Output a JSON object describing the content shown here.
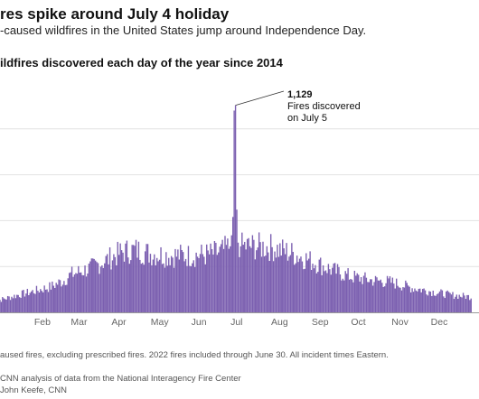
{
  "header": {
    "title": "res spike around July 4 holiday",
    "subtitle": "-caused wildfires in the United States jump around Independence Day."
  },
  "chart_data": {
    "type": "bar",
    "title": "ildfires discovered each day of the year since 2014",
    "color": "#7b5fb0",
    "x_tick_labels": [
      "Feb",
      "Mar",
      "Apr",
      "May",
      "Jun",
      "Jul",
      "Aug",
      "Sep",
      "Oct",
      "Nov",
      "Dec"
    ],
    "ylim": [
      0,
      1250
    ],
    "grid": true,
    "annotation": {
      "value": "1,129",
      "text_line1": "Fires discovered",
      "text_line2": "on July 5",
      "day_of_year": 186
    },
    "days": [
      {
        "day": 1,
        "value": 60
      },
      {
        "day": 10,
        "value": 75
      },
      {
        "day": 20,
        "value": 95
      },
      {
        "day": 32,
        "value": 115
      },
      {
        "day": 45,
        "value": 140
      },
      {
        "day": 55,
        "value": 175
      },
      {
        "day": 60,
        "value": 205
      },
      {
        "day": 75,
        "value": 240
      },
      {
        "day": 90,
        "value": 295
      },
      {
        "day": 100,
        "value": 330
      },
      {
        "day": 110,
        "value": 340
      },
      {
        "day": 121,
        "value": 320
      },
      {
        "day": 135,
        "value": 310
      },
      {
        "day": 152,
        "value": 310
      },
      {
        "day": 165,
        "value": 315
      },
      {
        "day": 175,
        "value": 330
      },
      {
        "day": 182,
        "value": 360
      },
      {
        "day": 183,
        "value": 420
      },
      {
        "day": 184,
        "value": 520
      },
      {
        "day": 185,
        "value": 1100
      },
      {
        "day": 186,
        "value": 1129
      },
      {
        "day": 187,
        "value": 560
      },
      {
        "day": 188,
        "value": 380
      },
      {
        "day": 190,
        "value": 360
      },
      {
        "day": 200,
        "value": 360
      },
      {
        "day": 213,
        "value": 355
      },
      {
        "day": 230,
        "value": 320
      },
      {
        "day": 244,
        "value": 280
      },
      {
        "day": 260,
        "value": 230
      },
      {
        "day": 274,
        "value": 195
      },
      {
        "day": 290,
        "value": 175
      },
      {
        "day": 305,
        "value": 165
      },
      {
        "day": 320,
        "value": 135
      },
      {
        "day": 335,
        "value": 115
      },
      {
        "day": 350,
        "value": 95
      },
      {
        "day": 366,
        "value": 85
      }
    ]
  },
  "footer": {
    "note": "aused fires, excluding prescribed fires. 2022 fires included through June 30. All incident times Eastern.",
    "source": "CNN analysis of data from the National Interagency Fire Center",
    "credit": "John Keefe, CNN"
  }
}
